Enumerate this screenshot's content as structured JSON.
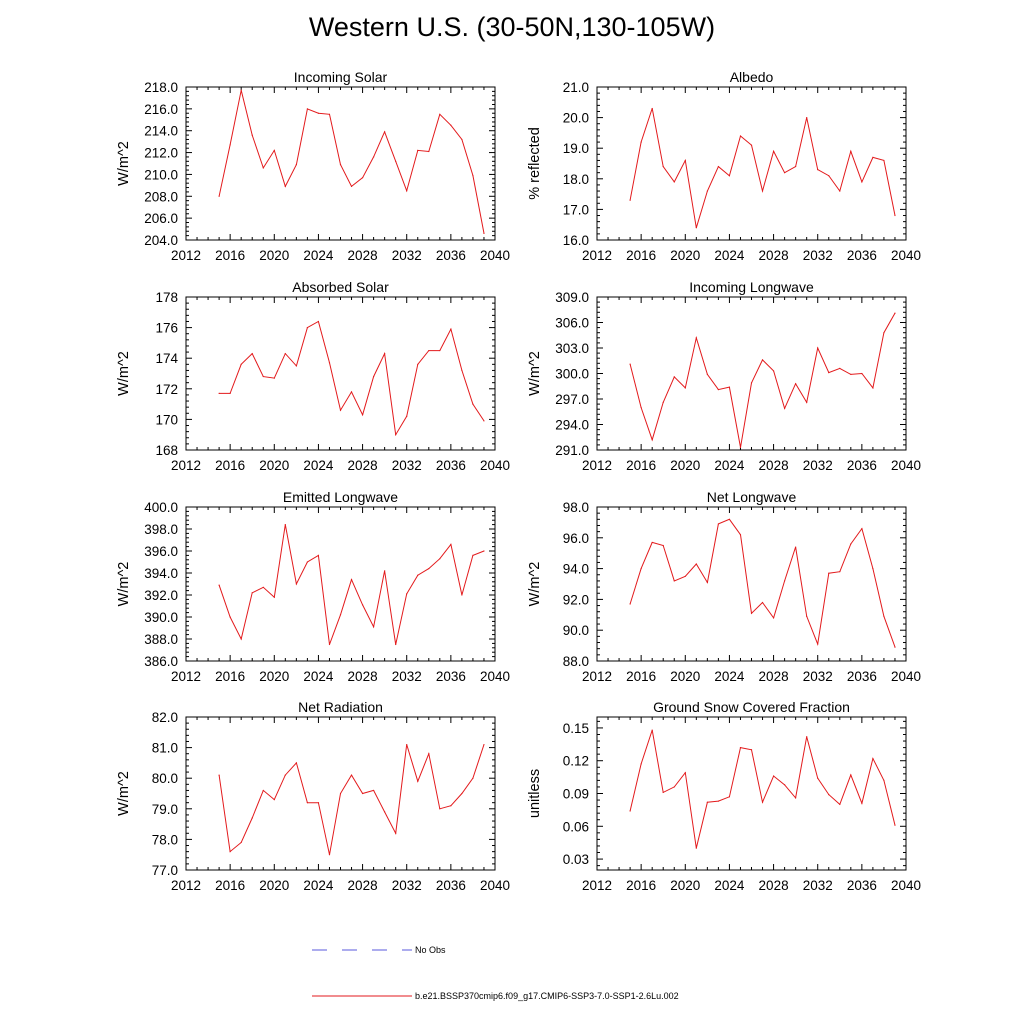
{
  "title": "Western U.S. (30-50N,130-105W)",
  "legend": {
    "no_obs_label": "No Obs",
    "no_obs_color": "#5a5adc",
    "model_label": "b.e21.BSSP370cmip6.f09_g17.CMIP6-SSP3-7.0-SSP1-2.6Lu.002",
    "model_color": "#e31a1c"
  },
  "chart_data": [
    {
      "type": "line",
      "title": "Incoming Solar",
      "ylabel": "W/m^2",
      "xlim": [
        2012,
        2040
      ],
      "xticks": [
        "2012",
        "2016",
        "2020",
        "2024",
        "2028",
        "2032",
        "2036",
        "2040"
      ],
      "ylim": [
        204,
        218
      ],
      "yticks": [
        "204.0",
        "206.0",
        "208.0",
        "210.0",
        "212.0",
        "214.0",
        "216.0",
        "218.0"
      ],
      "x": [
        2015,
        2016,
        2017,
        2018,
        2019,
        2020,
        2021,
        2022,
        2023,
        2024,
        2025,
        2026,
        2027,
        2028,
        2029,
        2030,
        2031,
        2032,
        2033,
        2034,
        2035,
        2036,
        2037,
        2038,
        2039
      ],
      "values": [
        208.0,
        212.7,
        217.7,
        213.6,
        210.6,
        212.2,
        208.9,
        210.9,
        216.0,
        215.6,
        215.5,
        210.9,
        208.9,
        209.7,
        211.6,
        213.9,
        211.2,
        208.5,
        212.2,
        212.1,
        215.5,
        214.5,
        213.2,
        209.9,
        204.6
      ]
    },
    {
      "type": "line",
      "title": "Albedo",
      "ylabel": "% reflected",
      "xlim": [
        2012,
        2040
      ],
      "xticks": [
        "2012",
        "2016",
        "2020",
        "2024",
        "2028",
        "2032",
        "2036",
        "2040"
      ],
      "ylim": [
        16,
        21
      ],
      "yticks": [
        "16.0",
        "17.0",
        "18.0",
        "19.0",
        "20.0",
        "21.0"
      ],
      "x": [
        2015,
        2016,
        2017,
        2018,
        2019,
        2020,
        2021,
        2022,
        2023,
        2024,
        2025,
        2026,
        2027,
        2028,
        2029,
        2030,
        2031,
        2032,
        2033,
        2034,
        2035,
        2036,
        2037,
        2038,
        2039
      ],
      "values": [
        17.3,
        19.2,
        20.3,
        18.4,
        17.9,
        18.6,
        16.4,
        17.6,
        18.4,
        18.1,
        19.4,
        19.1,
        17.6,
        18.9,
        18.2,
        18.4,
        20.0,
        18.3,
        18.1,
        17.6,
        18.9,
        17.9,
        18.7,
        18.6,
        16.8
      ]
    },
    {
      "type": "line",
      "title": "Absorbed Solar",
      "ylabel": "W/m^2",
      "xlim": [
        2012,
        2040
      ],
      "xticks": [
        "2012",
        "2016",
        "2020",
        "2024",
        "2028",
        "2032",
        "2036",
        "2040"
      ],
      "ylim": [
        168,
        178
      ],
      "yticks": [
        "168",
        "170",
        "172",
        "174",
        "176",
        "178"
      ],
      "x": [
        2015,
        2016,
        2017,
        2018,
        2019,
        2020,
        2021,
        2022,
        2023,
        2024,
        2025,
        2026,
        2027,
        2028,
        2029,
        2030,
        2031,
        2032,
        2033,
        2034,
        2035,
        2036,
        2037,
        2038,
        2039
      ],
      "values": [
        171.7,
        171.7,
        173.6,
        174.3,
        172.8,
        172.7,
        174.3,
        173.5,
        176.0,
        176.4,
        173.7,
        170.6,
        171.8,
        170.3,
        172.8,
        174.3,
        169.0,
        170.2,
        173.6,
        174.5,
        174.5,
        175.9,
        173.2,
        171.0,
        169.9
      ]
    },
    {
      "type": "line",
      "title": "Incoming Longwave",
      "ylabel": "W/m^2",
      "xlim": [
        2012,
        2040
      ],
      "xticks": [
        "2012",
        "2016",
        "2020",
        "2024",
        "2028",
        "2032",
        "2036",
        "2040"
      ],
      "ylim": [
        291,
        309
      ],
      "yticks": [
        "291.0",
        "294.0",
        "297.0",
        "300.0",
        "303.0",
        "306.0",
        "309.0"
      ],
      "x": [
        2015,
        2016,
        2017,
        2018,
        2019,
        2020,
        2021,
        2022,
        2023,
        2024,
        2025,
        2026,
        2027,
        2028,
        2029,
        2030,
        2031,
        2032,
        2033,
        2034,
        2035,
        2036,
        2037,
        2038,
        2039
      ],
      "values": [
        301.1,
        296.0,
        292.2,
        296.6,
        299.6,
        298.3,
        304.2,
        299.9,
        298.1,
        298.4,
        291.3,
        298.9,
        301.6,
        300.3,
        295.9,
        298.8,
        296.6,
        303.0,
        300.1,
        300.6,
        299.9,
        300.0,
        298.3,
        304.8,
        307.1
      ]
    },
    {
      "type": "line",
      "title": "Emitted Longwave",
      "ylabel": "W/m^2",
      "xlim": [
        2012,
        2040
      ],
      "xticks": [
        "2012",
        "2016",
        "2020",
        "2024",
        "2028",
        "2032",
        "2036",
        "2040"
      ],
      "ylim": [
        386,
        400
      ],
      "yticks": [
        "386.0",
        "388.0",
        "390.0",
        "392.0",
        "394.0",
        "396.0",
        "398.0",
        "400.0"
      ],
      "x": [
        2015,
        2016,
        2017,
        2018,
        2019,
        2020,
        2021,
        2022,
        2023,
        2024,
        2025,
        2026,
        2027,
        2028,
        2029,
        2030,
        2031,
        2032,
        2033,
        2034,
        2035,
        2036,
        2037,
        2038,
        2039
      ],
      "values": [
        392.9,
        390.0,
        388.0,
        392.2,
        392.7,
        391.8,
        398.4,
        393.0,
        395.0,
        395.6,
        387.5,
        390.2,
        393.4,
        391.1,
        389.1,
        394.2,
        387.5,
        392.1,
        393.8,
        394.4,
        395.3,
        396.6,
        392.0,
        395.6,
        396.0
      ]
    },
    {
      "type": "line",
      "title": "Net Longwave",
      "ylabel": "W/m^2",
      "xlim": [
        2012,
        2040
      ],
      "xticks": [
        "2012",
        "2016",
        "2020",
        "2024",
        "2028",
        "2032",
        "2036",
        "2040"
      ],
      "ylim": [
        88,
        98
      ],
      "yticks": [
        "88.0",
        "90.0",
        "92.0",
        "94.0",
        "96.0",
        "98.0"
      ],
      "x": [
        2015,
        2016,
        2017,
        2018,
        2019,
        2020,
        2021,
        2022,
        2023,
        2024,
        2025,
        2026,
        2027,
        2028,
        2029,
        2030,
        2031,
        2032,
        2033,
        2034,
        2035,
        2036,
        2037,
        2038,
        2039
      ],
      "values": [
        91.7,
        94.0,
        95.7,
        95.5,
        93.2,
        93.5,
        94.3,
        93.1,
        96.9,
        97.2,
        96.2,
        91.1,
        91.8,
        90.8,
        93.2,
        95.4,
        90.9,
        89.1,
        93.7,
        93.8,
        95.6,
        96.6,
        94.0,
        90.9,
        88.9
      ]
    },
    {
      "type": "line",
      "title": "Net Radiation",
      "ylabel": "W/m^2",
      "xlim": [
        2012,
        2040
      ],
      "xticks": [
        "2012",
        "2016",
        "2020",
        "2024",
        "2028",
        "2032",
        "2036",
        "2040"
      ],
      "ylim": [
        77,
        82
      ],
      "yticks": [
        "77.0",
        "78.0",
        "79.0",
        "80.0",
        "81.0",
        "82.0"
      ],
      "x": [
        2015,
        2016,
        2017,
        2018,
        2019,
        2020,
        2021,
        2022,
        2023,
        2024,
        2025,
        2026,
        2027,
        2028,
        2029,
        2030,
        2031,
        2032,
        2033,
        2034,
        2035,
        2036,
        2037,
        2038,
        2039
      ],
      "values": [
        80.1,
        77.6,
        77.9,
        78.7,
        79.6,
        79.3,
        80.1,
        80.5,
        79.2,
        79.2,
        77.5,
        79.5,
        80.1,
        79.5,
        79.6,
        78.9,
        78.2,
        81.1,
        79.9,
        80.8,
        79.0,
        79.1,
        79.5,
        80.0,
        81.1
      ]
    },
    {
      "type": "line",
      "title": "Ground Snow Covered Fraction",
      "ylabel": "unitless",
      "xlim": [
        2012,
        2040
      ],
      "xticks": [
        "2012",
        "2016",
        "2020",
        "2024",
        "2028",
        "2032",
        "2036",
        "2040"
      ],
      "ylim": [
        0.02,
        0.16
      ],
      "yticks": [
        "0.03",
        "0.06",
        "0.09",
        "0.12",
        "0.15"
      ],
      "ytick_values": [
        0.03,
        0.06,
        0.09,
        0.12,
        0.15
      ],
      "x": [
        2015,
        2016,
        2017,
        2018,
        2019,
        2020,
        2021,
        2022,
        2023,
        2024,
        2025,
        2026,
        2027,
        2028,
        2029,
        2030,
        2031,
        2032,
        2033,
        2034,
        2035,
        2036,
        2037,
        2038,
        2039
      ],
      "values": [
        0.074,
        0.117,
        0.148,
        0.091,
        0.096,
        0.109,
        0.04,
        0.082,
        0.083,
        0.087,
        0.132,
        0.13,
        0.082,
        0.106,
        0.098,
        0.086,
        0.142,
        0.104,
        0.089,
        0.08,
        0.107,
        0.081,
        0.122,
        0.102,
        0.061
      ]
    }
  ]
}
